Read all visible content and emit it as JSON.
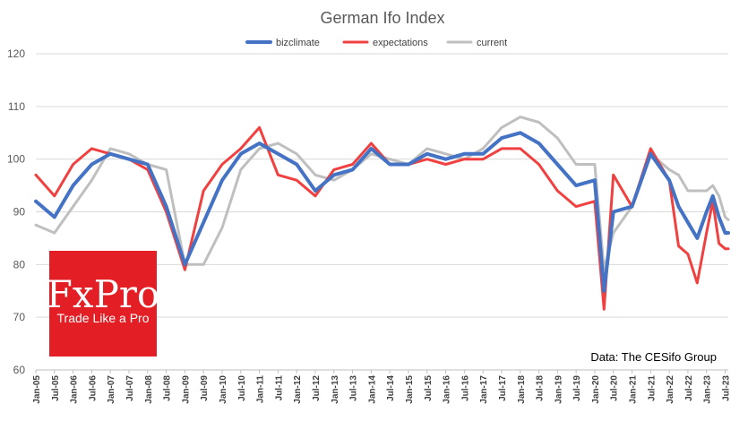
{
  "chart_data": {
    "type": "line",
    "title": "German Ifo Index",
    "ylim": [
      60,
      120
    ],
    "yticks": [
      60,
      70,
      80,
      90,
      100,
      110,
      120
    ],
    "x_start": "Jan-05",
    "x_labels": [
      "Jan-05",
      "Jul-05",
      "Jan-06",
      "Jul-06",
      "Jan-07",
      "Jul-07",
      "Jan-08",
      "Jul-08",
      "Jan-09",
      "Jul-09",
      "Jan-10",
      "Jul-10",
      "Jan-11",
      "Jul-11",
      "Jan-12",
      "Jul-12",
      "Jan-13",
      "Jul-13",
      "Jan-14",
      "Jul-14",
      "Jan-15",
      "Jul-15",
      "Jan-16",
      "Jul-16",
      "Jan-17",
      "Jul-17",
      "Jan-18",
      "Jul-18",
      "Jan-19",
      "Jul-19",
      "Jan-20",
      "Jul-20",
      "Jan-21",
      "Jul-21",
      "Jan-22",
      "Jul-22",
      "Jan-23",
      "Jul-23"
    ],
    "grid": "horizontal",
    "legend_position": "top-center",
    "series": [
      {
        "name": "bizclimate",
        "color": "#4472c4",
        "width": 4,
        "points": [
          [
            "Jan-05",
            92
          ],
          [
            "Jul-05",
            89
          ],
          [
            "Jan-06",
            95
          ],
          [
            "Jul-06",
            99
          ],
          [
            "Jan-07",
            101
          ],
          [
            "Jul-07",
            100
          ],
          [
            "Jan-08",
            99
          ],
          [
            "Jul-08",
            91
          ],
          [
            "Jan-09",
            80
          ],
          [
            "Jul-09",
            88
          ],
          [
            "Jan-10",
            96
          ],
          [
            "Jul-10",
            101
          ],
          [
            "Jan-11",
            103
          ],
          [
            "Jul-11",
            101
          ],
          [
            "Jan-12",
            99
          ],
          [
            "Jul-12",
            94
          ],
          [
            "Jan-13",
            97
          ],
          [
            "Jul-13",
            98
          ],
          [
            "Jan-14",
            102
          ],
          [
            "Jul-14",
            99
          ],
          [
            "Jan-15",
            99
          ],
          [
            "Jul-15",
            101
          ],
          [
            "Jan-16",
            100
          ],
          [
            "Jul-16",
            101
          ],
          [
            "Jan-17",
            101
          ],
          [
            "Jul-17",
            104
          ],
          [
            "Jan-18",
            105
          ],
          [
            "Jul-18",
            103
          ],
          [
            "Jan-19",
            99
          ],
          [
            "Jul-19",
            95
          ],
          [
            "Jan-20",
            96
          ],
          [
            "Apr-20",
            75
          ],
          [
            "Jul-20",
            90
          ],
          [
            "Jan-21",
            91
          ],
          [
            "Jul-21",
            101
          ],
          [
            "Jan-22",
            96
          ],
          [
            "Apr-22",
            91
          ],
          [
            "Jul-22",
            88
          ],
          [
            "Oct-22",
            85
          ],
          [
            "Jan-23",
            90
          ],
          [
            "Mar-23",
            93
          ],
          [
            "May-23",
            89
          ],
          [
            "Jul-23",
            86
          ],
          [
            "Aug-23",
            86
          ]
        ]
      },
      {
        "name": "expectations",
        "color": "#f04040",
        "width": 3,
        "points": [
          [
            "Jan-05",
            97
          ],
          [
            "Jul-05",
            93
          ],
          [
            "Jan-06",
            99
          ],
          [
            "Jul-06",
            102
          ],
          [
            "Jan-07",
            101
          ],
          [
            "Jul-07",
            100
          ],
          [
            "Jan-08",
            98
          ],
          [
            "Jul-08",
            90
          ],
          [
            "Jan-09",
            79
          ],
          [
            "Jul-09",
            94
          ],
          [
            "Jan-10",
            99
          ],
          [
            "Jul-10",
            102
          ],
          [
            "Jan-11",
            106
          ],
          [
            "Jul-11",
            97
          ],
          [
            "Jan-12",
            96
          ],
          [
            "Jul-12",
            93
          ],
          [
            "Jan-13",
            98
          ],
          [
            "Jul-13",
            99
          ],
          [
            "Jan-14",
            103
          ],
          [
            "Jul-14",
            99
          ],
          [
            "Jan-15",
            99
          ],
          [
            "Jul-15",
            100
          ],
          [
            "Jan-16",
            99
          ],
          [
            "Jul-16",
            100
          ],
          [
            "Jan-17",
            100
          ],
          [
            "Jul-17",
            102
          ],
          [
            "Jan-18",
            102
          ],
          [
            "Jul-18",
            99
          ],
          [
            "Jan-19",
            94
          ],
          [
            "Jul-19",
            91
          ],
          [
            "Jan-20",
            92
          ],
          [
            "Apr-20",
            71.5
          ],
          [
            "Jul-20",
            97
          ],
          [
            "Jan-21",
            91
          ],
          [
            "Jul-21",
            102
          ],
          [
            "Jan-22",
            96
          ],
          [
            "Apr-22",
            83.5
          ],
          [
            "Jul-22",
            82
          ],
          [
            "Oct-22",
            76.5
          ],
          [
            "Jan-23",
            86
          ],
          [
            "Mar-23",
            92
          ],
          [
            "May-23",
            84
          ],
          [
            "Jul-23",
            83
          ],
          [
            "Aug-23",
            83
          ]
        ]
      },
      {
        "name": "current",
        "color": "#bfbfbf",
        "width": 3,
        "points": [
          [
            "Jan-05",
            87.5
          ],
          [
            "Jul-05",
            86
          ],
          [
            "Jan-06",
            91
          ],
          [
            "Jul-06",
            96
          ],
          [
            "Jan-07",
            102
          ],
          [
            "Jul-07",
            101
          ],
          [
            "Jan-08",
            99
          ],
          [
            "Jul-08",
            98
          ],
          [
            "Jan-09",
            80
          ],
          [
            "Jul-09",
            80
          ],
          [
            "Jan-10",
            87
          ],
          [
            "Jul-10",
            98
          ],
          [
            "Jan-11",
            102
          ],
          [
            "Jul-11",
            103
          ],
          [
            "Jan-12",
            101
          ],
          [
            "Jul-12",
            97
          ],
          [
            "Jan-13",
            96
          ],
          [
            "Jul-13",
            98
          ],
          [
            "Jan-14",
            101
          ],
          [
            "Jul-14",
            100
          ],
          [
            "Jan-15",
            99
          ],
          [
            "Jul-15",
            102
          ],
          [
            "Jan-16",
            101
          ],
          [
            "Jul-16",
            100
          ],
          [
            "Jan-17",
            102
          ],
          [
            "Jul-17",
            106
          ],
          [
            "Jan-18",
            108
          ],
          [
            "Jul-18",
            107
          ],
          [
            "Jan-19",
            104
          ],
          [
            "Jul-19",
            99
          ],
          [
            "Jan-20",
            99
          ],
          [
            "Apr-20",
            79
          ],
          [
            "Jul-20",
            86
          ],
          [
            "Jan-21",
            91
          ],
          [
            "Jul-21",
            101
          ],
          [
            "Jan-22",
            98
          ],
          [
            "Apr-22",
            97
          ],
          [
            "Jul-22",
            94
          ],
          [
            "Oct-22",
            94
          ],
          [
            "Jan-23",
            94
          ],
          [
            "Mar-23",
            95
          ],
          [
            "May-23",
            93
          ],
          [
            "Jul-23",
            89
          ],
          [
            "Aug-23",
            88.5
          ]
        ]
      }
    ]
  },
  "logo": {
    "brand": "FxPro",
    "tagline": "Trade Like a Pro",
    "color": "#e31e24"
  },
  "source_text": "Data: The CESifo Group"
}
